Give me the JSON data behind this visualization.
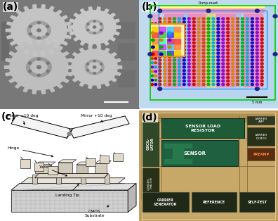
{
  "panels": [
    "(a)",
    "(b)",
    "(c)",
    "(d)"
  ],
  "background_color": "#ffffff",
  "label_fontsize": 10,
  "label_fontweight": "bold",
  "panel_a_bg": "#888888",
  "panel_b_bg": "#b8d8f0",
  "panel_c_bg": "#f8f8f8",
  "panel_d_bg": "#c8a870",
  "gear_colors": {
    "body": "#c0c0c0",
    "body2": "#b8b8b8",
    "shadow": "#686868",
    "bg": "#828282",
    "hub_outer": "#a0a0a0",
    "hub_inner": "#b0b0b0",
    "tooth": "#c8c8c8"
  },
  "chip_d": {
    "bg": "#c4a878",
    "dark_green": "#1e6040",
    "mid_green": "#2a7050",
    "teal": "#1a7060",
    "dark_brown": "#3a2010",
    "dark_grey": "#303030",
    "white_text": "#ffffff"
  }
}
